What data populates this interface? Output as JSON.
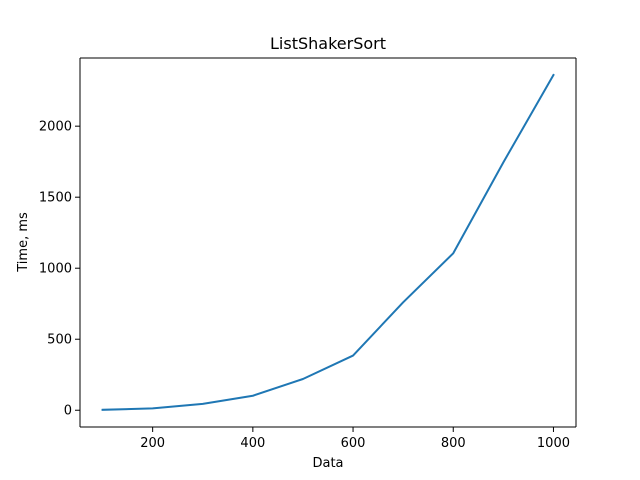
{
  "chart_data": {
    "type": "line",
    "title": "ListShakerSort",
    "xlabel": "Data",
    "ylabel": "Time, ms",
    "xlim": [
      55,
      1045
    ],
    "ylim": [
      -118,
      2480
    ],
    "x_ticks": [
      200,
      400,
      600,
      800,
      1000
    ],
    "y_ticks": [
      0,
      500,
      1000,
      1500,
      2000
    ],
    "grid": false,
    "series": [
      {
        "color": "#1f77b4",
        "x": [
          100,
          200,
          300,
          400,
          500,
          600,
          700,
          800,
          900,
          1000
        ],
        "y": [
          3,
          13,
          45,
          102,
          220,
          385,
          760,
          1105,
          1745,
          2360
        ]
      }
    ]
  }
}
